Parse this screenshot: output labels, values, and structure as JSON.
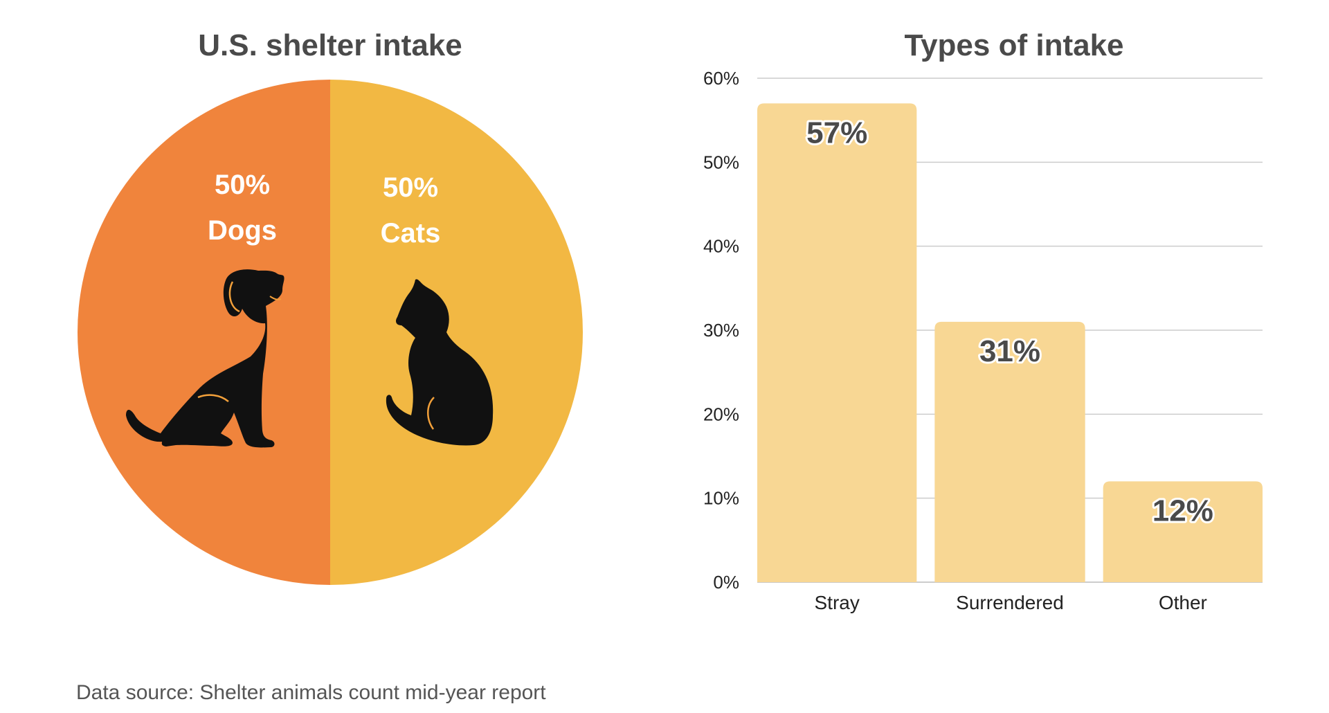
{
  "chart_data": [
    {
      "type": "pie",
      "title": "U.S. shelter intake",
      "slices": [
        {
          "label": "Dogs",
          "value": 50,
          "value_label": "50%",
          "color": "#F0843C",
          "icon": "dog-silhouette-icon"
        },
        {
          "label": "Cats",
          "value": 50,
          "value_label": "50%",
          "color": "#F2B843",
          "icon": "cat-silhouette-icon"
        }
      ]
    },
    {
      "type": "bar",
      "title": "Types of intake",
      "categories": [
        "Stray",
        "Surrendered",
        "Other"
      ],
      "values": [
        57,
        31,
        12
      ],
      "value_labels": [
        "57%",
        "31%",
        "12%"
      ],
      "bar_color": "#F8D794",
      "ylim": [
        0,
        60
      ],
      "yticks": [
        0,
        10,
        20,
        30,
        40,
        50,
        60
      ],
      "ytick_labels": [
        "0%",
        "10%",
        "20%",
        "30%",
        "40%",
        "50%",
        "60%"
      ],
      "grid": true,
      "xlabel": "",
      "ylabel": ""
    }
  ],
  "footer": {
    "source": "Data source: Shelter animals count mid-year report"
  },
  "colors": {
    "title_text": "#4a4a4a",
    "silhouette": "#111111",
    "silhouette_accent": "#F2A03A"
  }
}
